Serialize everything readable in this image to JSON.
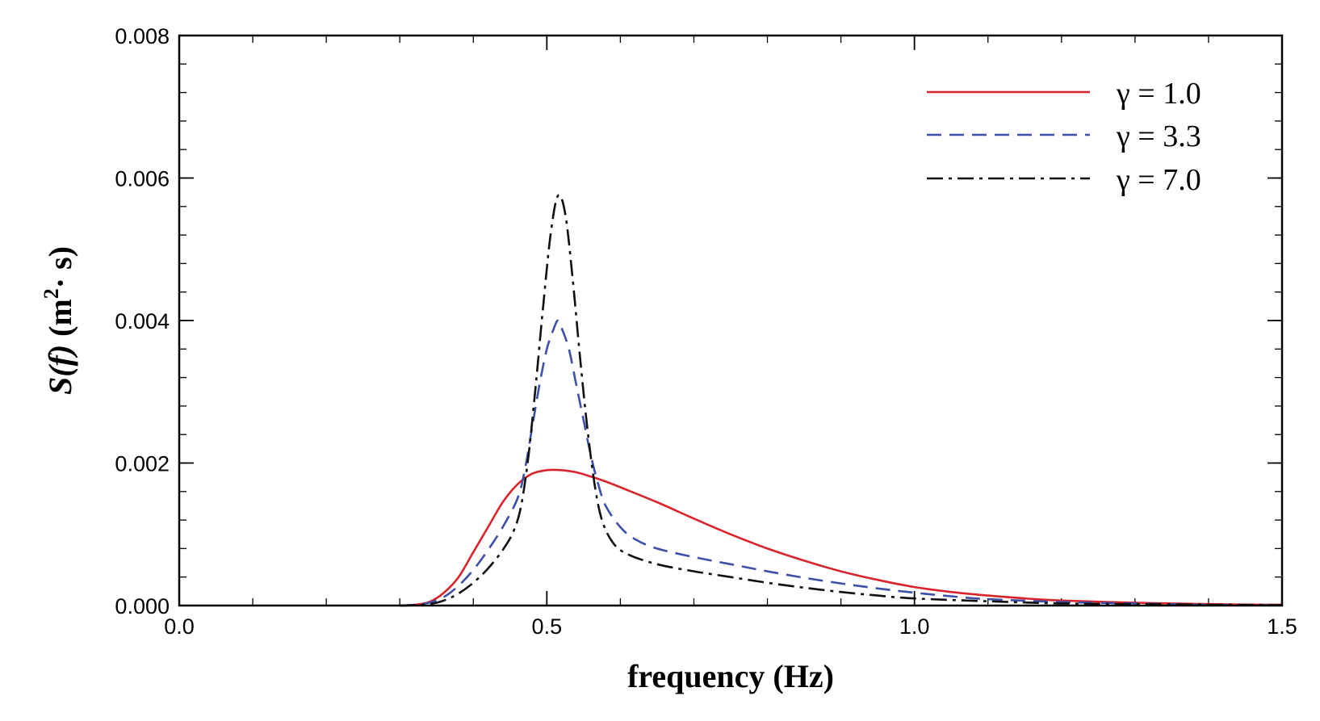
{
  "chart_data": {
    "type": "line",
    "title": "",
    "xlabel": "frequency (Hz)",
    "ylabel": {
      "main": "S(f)",
      "unit_open": " (m",
      "unit_sup": "2",
      "unit_close": "· s)"
    },
    "xlim": [
      0.0,
      1.5
    ],
    "ylim": [
      0.0,
      0.008
    ],
    "xticks": [
      {
        "value": 0.0,
        "label": "0.0"
      },
      {
        "value": 0.5,
        "label": "0.5"
      },
      {
        "value": 1.0,
        "label": "1.0"
      },
      {
        "value": 1.5,
        "label": "1.5"
      }
    ],
    "yticks": [
      {
        "value": 0.0,
        "label": "0.000"
      },
      {
        "value": 0.002,
        "label": "0.002"
      },
      {
        "value": 0.004,
        "label": "0.004"
      },
      {
        "value": 0.006,
        "label": "0.006"
      },
      {
        "value": 0.008,
        "label": "0.008"
      }
    ],
    "x_minor_step": 0.1,
    "y_minor_step": 0.0004,
    "legend_position": "top-right",
    "grid": false,
    "series": [
      {
        "name": "γ = 1.0",
        "color": "#d9242b",
        "dash": "solid",
        "points": [
          [
            0.3,
            0
          ],
          [
            0.32,
            1e-05
          ],
          [
            0.34,
            5e-05
          ],
          [
            0.36,
            0.00018
          ],
          [
            0.38,
            0.0004
          ],
          [
            0.4,
            0.00075
          ],
          [
            0.42,
            0.0011
          ],
          [
            0.44,
            0.00145
          ],
          [
            0.46,
            0.0017
          ],
          [
            0.48,
            0.00185
          ],
          [
            0.5,
            0.0019
          ],
          [
            0.52,
            0.0019
          ],
          [
            0.54,
            0.00187
          ],
          [
            0.56,
            0.00181
          ],
          [
            0.58,
            0.00174
          ],
          [
            0.6,
            0.00166
          ],
          [
            0.65,
            0.00145
          ],
          [
            0.7,
            0.00122
          ],
          [
            0.75,
            0.001
          ],
          [
            0.8,
            0.0008
          ],
          [
            0.85,
            0.00063
          ],
          [
            0.9,
            0.00048
          ],
          [
            0.95,
            0.00036
          ],
          [
            1.0,
            0.00026
          ],
          [
            1.05,
            0.00019
          ],
          [
            1.1,
            0.00014
          ],
          [
            1.15,
            0.0001
          ],
          [
            1.2,
            7e-05
          ],
          [
            1.3,
            4e-05
          ],
          [
            1.4,
            2e-05
          ],
          [
            1.5,
            1e-05
          ]
        ]
      },
      {
        "name": "γ = 3.3",
        "color": "#3e4fa8",
        "dash": "dashed",
        "points": [
          [
            0.3,
            0
          ],
          [
            0.32,
            1e-05
          ],
          [
            0.34,
            4e-05
          ],
          [
            0.36,
            0.00012
          ],
          [
            0.38,
            0.00028
          ],
          [
            0.4,
            0.0005
          ],
          [
            0.42,
            0.00078
          ],
          [
            0.44,
            0.0011
          ],
          [
            0.46,
            0.0015
          ],
          [
            0.47,
            0.0019
          ],
          [
            0.48,
            0.0025
          ],
          [
            0.49,
            0.0031
          ],
          [
            0.5,
            0.0036
          ],
          [
            0.51,
            0.0039
          ],
          [
            0.515,
            0.004
          ],
          [
            0.52,
            0.0039
          ],
          [
            0.53,
            0.0036
          ],
          [
            0.54,
            0.0031
          ],
          [
            0.55,
            0.0026
          ],
          [
            0.56,
            0.0021
          ],
          [
            0.57,
            0.0017
          ],
          [
            0.58,
            0.0014
          ],
          [
            0.6,
            0.0011
          ],
          [
            0.62,
            0.00093
          ],
          [
            0.65,
            0.0008
          ],
          [
            0.7,
            0.00068
          ],
          [
            0.75,
            0.00058
          ],
          [
            0.8,
            0.00048
          ],
          [
            0.85,
            0.00039
          ],
          [
            0.9,
            0.00031
          ],
          [
            0.95,
            0.00024
          ],
          [
            1.0,
            0.00018
          ],
          [
            1.05,
            0.00013
          ],
          [
            1.1,
            9e-05
          ],
          [
            1.2,
            5e-05
          ],
          [
            1.3,
            3e-05
          ],
          [
            1.4,
            1e-05
          ],
          [
            1.5,
            5e-06
          ]
        ]
      },
      {
        "name": "γ = 7.0",
        "color": "#111111",
        "dash": "dashdot",
        "points": [
          [
            0.3,
            0
          ],
          [
            0.32,
            5e-06
          ],
          [
            0.34,
            2e-05
          ],
          [
            0.36,
            7e-05
          ],
          [
            0.38,
            0.00017
          ],
          [
            0.4,
            0.00032
          ],
          [
            0.42,
            0.00052
          ],
          [
            0.44,
            0.00078
          ],
          [
            0.455,
            0.00105
          ],
          [
            0.465,
            0.0014
          ],
          [
            0.475,
            0.0021
          ],
          [
            0.485,
            0.0031
          ],
          [
            0.495,
            0.0042
          ],
          [
            0.505,
            0.0052
          ],
          [
            0.515,
            0.00575
          ],
          [
            0.525,
            0.0055
          ],
          [
            0.535,
            0.0046
          ],
          [
            0.545,
            0.0035
          ],
          [
            0.555,
            0.0025
          ],
          [
            0.565,
            0.0017
          ],
          [
            0.575,
            0.0012
          ],
          [
            0.59,
            0.00088
          ],
          [
            0.61,
            0.00072
          ],
          [
            0.65,
            0.00058
          ],
          [
            0.7,
            0.00048
          ],
          [
            0.75,
            0.0004
          ],
          [
            0.8,
            0.00032
          ],
          [
            0.85,
            0.00025
          ],
          [
            0.9,
            0.00019
          ],
          [
            0.95,
            0.00014
          ],
          [
            1.0,
            0.0001
          ],
          [
            1.1,
            6e-05
          ],
          [
            1.2,
            3e-05
          ],
          [
            1.3,
            2e-05
          ],
          [
            1.5,
            5e-06
          ]
        ]
      }
    ]
  }
}
